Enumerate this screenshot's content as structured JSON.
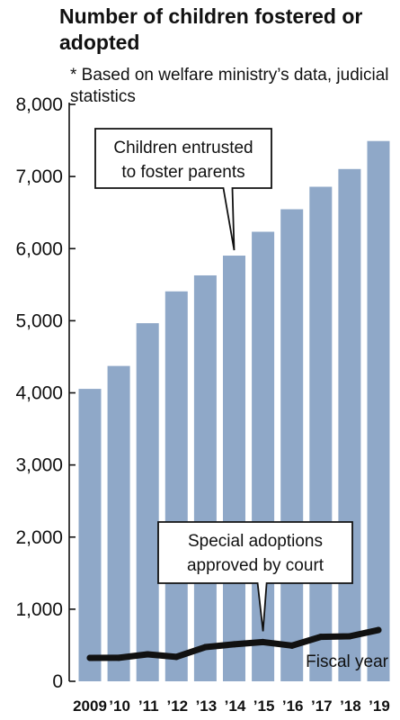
{
  "title": "Number of children fostered or adopted",
  "note": "* Based on welfare ministry’s data, judicial statistics",
  "chart_data": {
    "type": "bar",
    "categories": [
      "2009",
      "’10",
      "’11",
      "’12",
      "’13",
      "’14",
      "’15",
      "’16",
      "’17",
      "’18",
      "’19"
    ],
    "xlabel": "Fiscal year",
    "ylabel": "",
    "ylim": [
      0,
      8000
    ],
    "yticks": [
      0,
      1000,
      2000,
      3000,
      4000,
      5000,
      6000,
      7000,
      8000
    ],
    "ytick_labels": [
      "0",
      "1,000",
      "2,000",
      "3,000",
      "4,000",
      "5,000",
      "6,000",
      "7,000",
      "8,000"
    ],
    "grid": false,
    "series": [
      {
        "name": "Children entrusted to foster parents",
        "type": "bar",
        "color": "#8fa8c8",
        "values": [
          4055,
          4373,
          4966,
          5407,
          5629,
          5903,
          6234,
          6546,
          6858,
          7104,
          7492
        ]
      },
      {
        "name": "Special adoptions approved by court",
        "type": "line",
        "color": "#111111",
        "values": [
          325,
          326,
          374,
          339,
          474,
          513,
          544,
          495,
          616,
          624,
          711
        ]
      }
    ],
    "annotations": [
      {
        "text_lines": [
          "Children entrusted",
          "to foster parents"
        ],
        "points_to_index": 5,
        "series": 0
      },
      {
        "text_lines": [
          "Special adoptions",
          "approved by court"
        ],
        "points_to_index": 6,
        "series": 1
      }
    ]
  }
}
